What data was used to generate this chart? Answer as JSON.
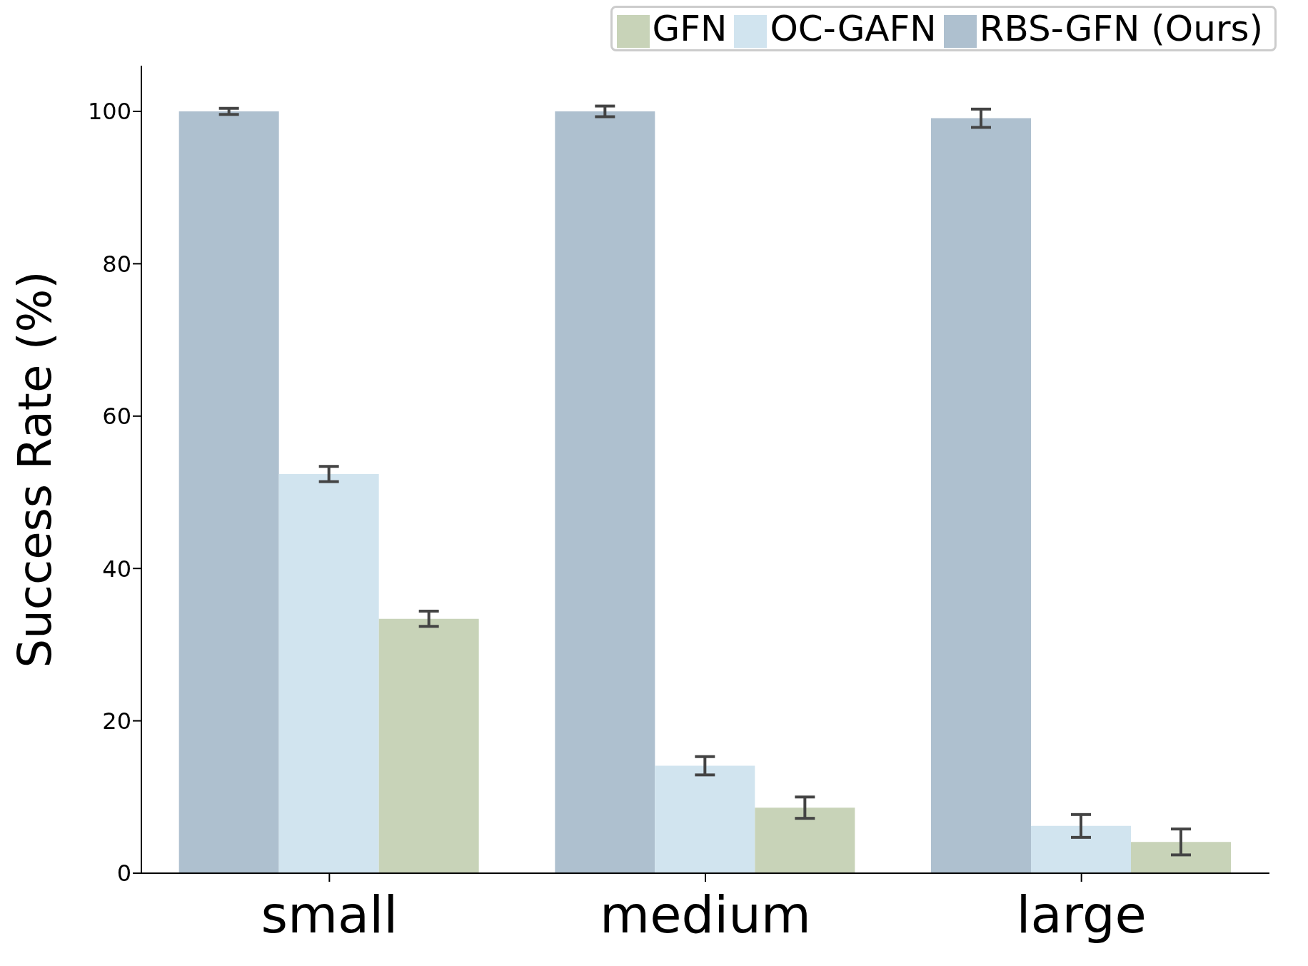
{
  "chart_data": {
    "type": "bar",
    "ylabel": "Success Rate (%)",
    "categories": [
      "small",
      "medium",
      "large"
    ],
    "series": [
      {
        "name": "RBS-GFN (Ours)",
        "color": "#aec0cf",
        "values": [
          100,
          100,
          99.1
        ],
        "errors": [
          0.4,
          0.7,
          1.2
        ]
      },
      {
        "name": "OC-GAFN",
        "color": "#d1e4ef",
        "values": [
          52.4,
          14.1,
          6.2
        ],
        "errors": [
          1.0,
          1.2,
          1.5
        ]
      },
      {
        "name": "GFN",
        "color": "#c8d3b8",
        "values": [
          33.4,
          8.6,
          4.1
        ],
        "errors": [
          1.0,
          1.4,
          1.7
        ]
      }
    ],
    "ylim": [
      0,
      106
    ],
    "yticks": [
      0,
      20,
      40,
      60,
      80,
      100
    ],
    "grid": false,
    "legend": "top right"
  }
}
